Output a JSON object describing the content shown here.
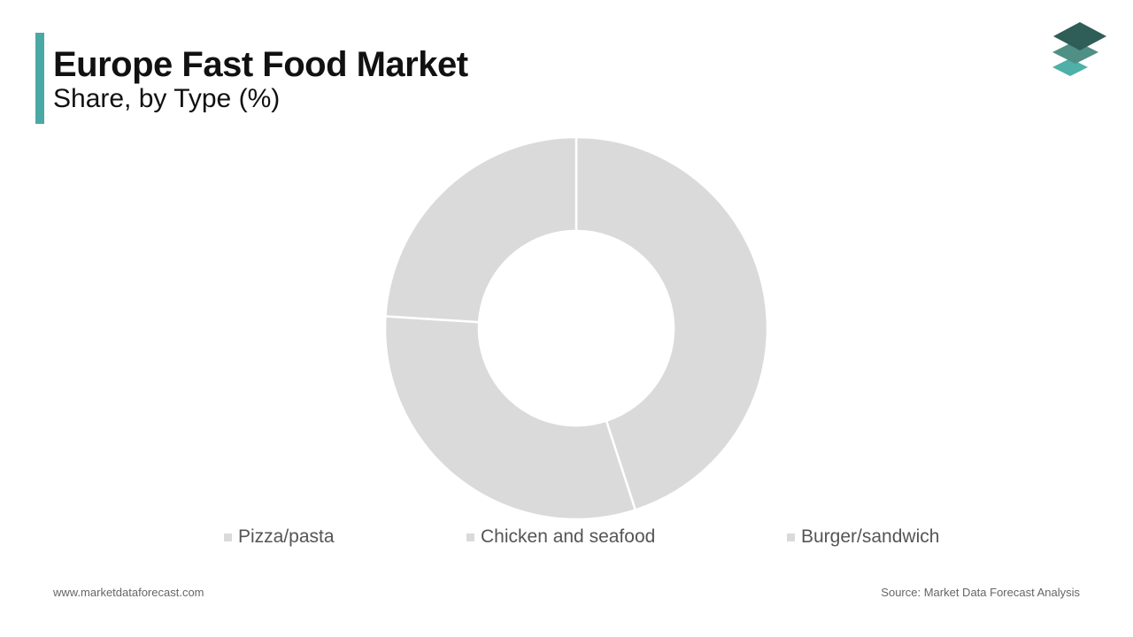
{
  "header": {
    "title": "Europe Fast Food Market",
    "subtitle": "Share, by Type (%)"
  },
  "logo": {
    "icon": "stacked-layers-logo-icon",
    "colors": [
      "#2f5d57",
      "#4f8f86",
      "#4fb0a8"
    ]
  },
  "colors": {
    "accent": "#4aa9a4",
    "slice_fill": "#dadada",
    "slice_border": "#ffffff",
    "legend_text": "#555555"
  },
  "chart_data": {
    "type": "pie",
    "donut": true,
    "title": "",
    "legend_position": "bottom",
    "categories": [
      "Pizza/pasta",
      "Chicken and seafood",
      "Burger/sandwich"
    ],
    "values": [
      45,
      31,
      24
    ],
    "unit": "%"
  },
  "footer": {
    "website": "www.marketdataforecast.com",
    "source": "Source: Market Data Forecast Analysis"
  }
}
